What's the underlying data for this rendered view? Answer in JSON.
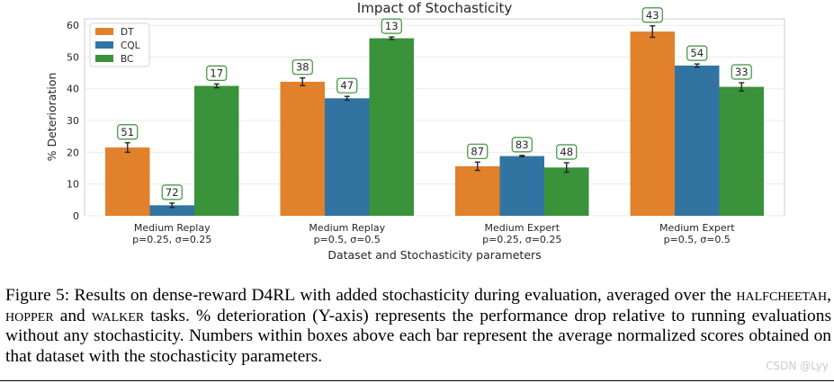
{
  "chart_data": {
    "type": "bar",
    "title": "Impact of Stochasticity",
    "xlabel": "Dataset and Stochasticity parameters",
    "ylabel": "% Deterioration",
    "ylim": [
      0,
      62
    ],
    "yticks": [
      0,
      10,
      20,
      30,
      40,
      50,
      60
    ],
    "grid": true,
    "legend_position": "top-left",
    "categories": [
      [
        "Medium Replay",
        "p=0.25, σ=0.25"
      ],
      [
        "Medium Replay",
        "p=0.5, σ=0.5"
      ],
      [
        "Medium Expert",
        "p=0.25, σ=0.25"
      ],
      [
        "Medium Expert",
        "p=0.5, σ=0.5"
      ]
    ],
    "series": [
      {
        "name": "DT",
        "color": "#e1812c",
        "values": [
          21.5,
          42.2,
          15.6,
          58.0
        ],
        "errors": [
          1.5,
          1.2,
          1.3,
          1.8
        ],
        "scores": [
          "51",
          "38",
          "87",
          "43"
        ]
      },
      {
        "name": "CQL",
        "color": "#3274a1",
        "values": [
          3.3,
          37.0,
          18.8,
          47.3
        ],
        "errors": [
          0.7,
          0.6,
          0.2,
          0.5
        ],
        "scores": [
          "72",
          "47",
          "83",
          "54"
        ]
      },
      {
        "name": "BC",
        "color": "#3a923a",
        "values": [
          40.9,
          55.9,
          15.2,
          40.6
        ],
        "errors": [
          0.6,
          0.4,
          1.5,
          1.3
        ],
        "scores": [
          "17",
          "13",
          "48",
          "33"
        ]
      }
    ]
  },
  "caption": {
    "part1": "Figure 5: Results on dense-reward D4",
    "rl": "RL",
    "part2": " with added stochasticity during evaluation, averaged over the ",
    "halfcheetah": "halfcheetah",
    "sep1": ", ",
    "hopper": "hopper",
    "sep2": " and ",
    "walker": "walker",
    "part3": " tasks. % deterioration (Y-axis) represents the performance drop relative to running evaluations without any stochasticity. Numbers within boxes above each bar represent the average normalized scores obtained on that dataset with the stochasticity parameters."
  },
  "watermark": "CSDN @Lyy"
}
